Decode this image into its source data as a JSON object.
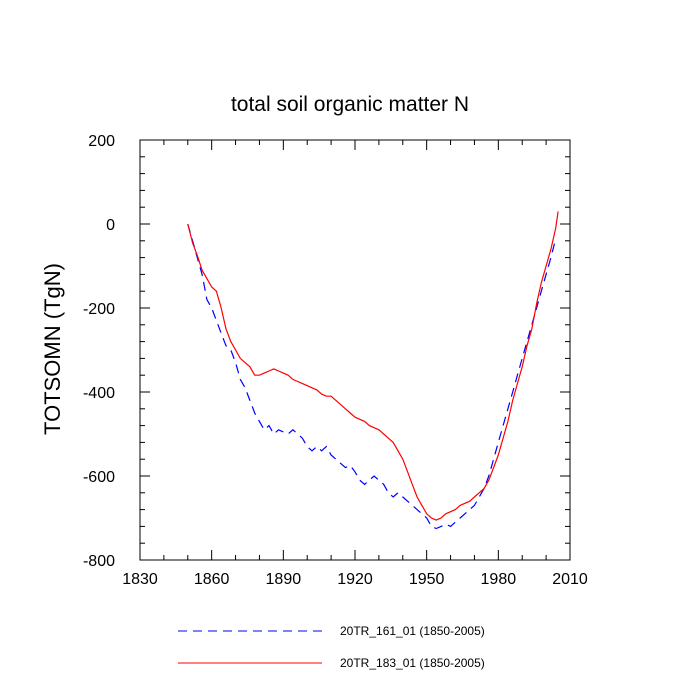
{
  "chart_data": {
    "type": "line",
    "title": "total soil organic matter N",
    "xlabel": "",
    "ylabel": "TOTSOMN  (TgN)",
    "xlim": [
      1830,
      2010
    ],
    "ylim": [
      -800,
      200
    ],
    "x_ticks": [
      "1830",
      "1860",
      "1890",
      "1920",
      "1950",
      "1980",
      "2010"
    ],
    "y_ticks": [
      "200",
      "0",
      "-200",
      "-400",
      "-600",
      "-800"
    ],
    "x_tick_values": [
      1830,
      1860,
      1890,
      1920,
      1950,
      1980,
      2010
    ],
    "y_tick_values": [
      200,
      0,
      -200,
      -400,
      -600,
      -800
    ],
    "legend_position": "bottom",
    "series": [
      {
        "name": "20TR_161_01 (1850-2005)",
        "color": "#0000ff",
        "dash": "dashed",
        "x": [
          1850,
          1852,
          1854,
          1856,
          1858,
          1860,
          1862,
          1864,
          1866,
          1868,
          1870,
          1872,
          1874,
          1876,
          1878,
          1880,
          1882,
          1884,
          1886,
          1888,
          1890,
          1892,
          1894,
          1896,
          1898,
          1900,
          1902,
          1904,
          1906,
          1908,
          1910,
          1912,
          1914,
          1916,
          1918,
          1920,
          1922,
          1924,
          1926,
          1928,
          1930,
          1932,
          1934,
          1936,
          1938,
          1940,
          1942,
          1944,
          1946,
          1948,
          1950,
          1952,
          1954,
          1956,
          1958,
          1960,
          1962,
          1964,
          1966,
          1968,
          1970,
          1972,
          1974,
          1976,
          1978,
          1980,
          1982,
          1984,
          1986,
          1988,
          1990,
          1992,
          1994,
          1996,
          1998,
          2000,
          2002,
          2004
        ],
        "values": [
          0,
          -40,
          -80,
          -120,
          -180,
          -200,
          -230,
          -260,
          -290,
          -300,
          -330,
          -370,
          -390,
          -420,
          -450,
          -470,
          -490,
          -480,
          -500,
          -490,
          -495,
          -500,
          -490,
          -500,
          -510,
          -530,
          -540,
          -530,
          -540,
          -530,
          -550,
          -560,
          -570,
          -580,
          -575,
          -590,
          -610,
          -620,
          -610,
          -600,
          -610,
          -620,
          -640,
          -650,
          -640,
          -650,
          -660,
          -670,
          -680,
          -690,
          -700,
          -720,
          -725,
          -720,
          -715,
          -720,
          -710,
          -700,
          -690,
          -680,
          -670,
          -650,
          -630,
          -600,
          -560,
          -520,
          -480,
          -440,
          -400,
          -360,
          -320,
          -280,
          -240,
          -200,
          -160,
          -120,
          -80,
          -35
        ]
      },
      {
        "name": "20TR_183_01 (1850-2005)",
        "color": "#ff0000",
        "dash": "solid",
        "x": [
          1850,
          1852,
          1854,
          1856,
          1858,
          1860,
          1862,
          1864,
          1866,
          1868,
          1870,
          1872,
          1874,
          1876,
          1878,
          1880,
          1882,
          1884,
          1886,
          1888,
          1890,
          1892,
          1894,
          1896,
          1898,
          1900,
          1902,
          1904,
          1906,
          1908,
          1910,
          1912,
          1914,
          1916,
          1918,
          1920,
          1922,
          1924,
          1926,
          1928,
          1930,
          1932,
          1934,
          1936,
          1938,
          1940,
          1942,
          1944,
          1946,
          1948,
          1950,
          1952,
          1954,
          1956,
          1958,
          1960,
          1962,
          1964,
          1966,
          1968,
          1970,
          1972,
          1974,
          1976,
          1978,
          1980,
          1982,
          1984,
          1986,
          1988,
          1990,
          1992,
          1994,
          1996,
          1998,
          2000,
          2002,
          2004,
          2005
        ],
        "values": [
          0,
          -45,
          -75,
          -110,
          -130,
          -150,
          -160,
          -200,
          -250,
          -280,
          -300,
          -320,
          -330,
          -340,
          -360,
          -360,
          -355,
          -350,
          -345,
          -350,
          -355,
          -360,
          -370,
          -375,
          -380,
          -385,
          -390,
          -395,
          -405,
          -410,
          -410,
          -420,
          -430,
          -440,
          -450,
          -460,
          -465,
          -470,
          -480,
          -485,
          -490,
          -500,
          -510,
          -520,
          -540,
          -560,
          -590,
          -620,
          -650,
          -670,
          -690,
          -700,
          -705,
          -700,
          -690,
          -685,
          -680,
          -670,
          -665,
          -660,
          -650,
          -640,
          -630,
          -610,
          -580,
          -550,
          -510,
          -470,
          -420,
          -380,
          -340,
          -290,
          -250,
          -190,
          -140,
          -100,
          -60,
          -10,
          30
        ]
      }
    ]
  }
}
